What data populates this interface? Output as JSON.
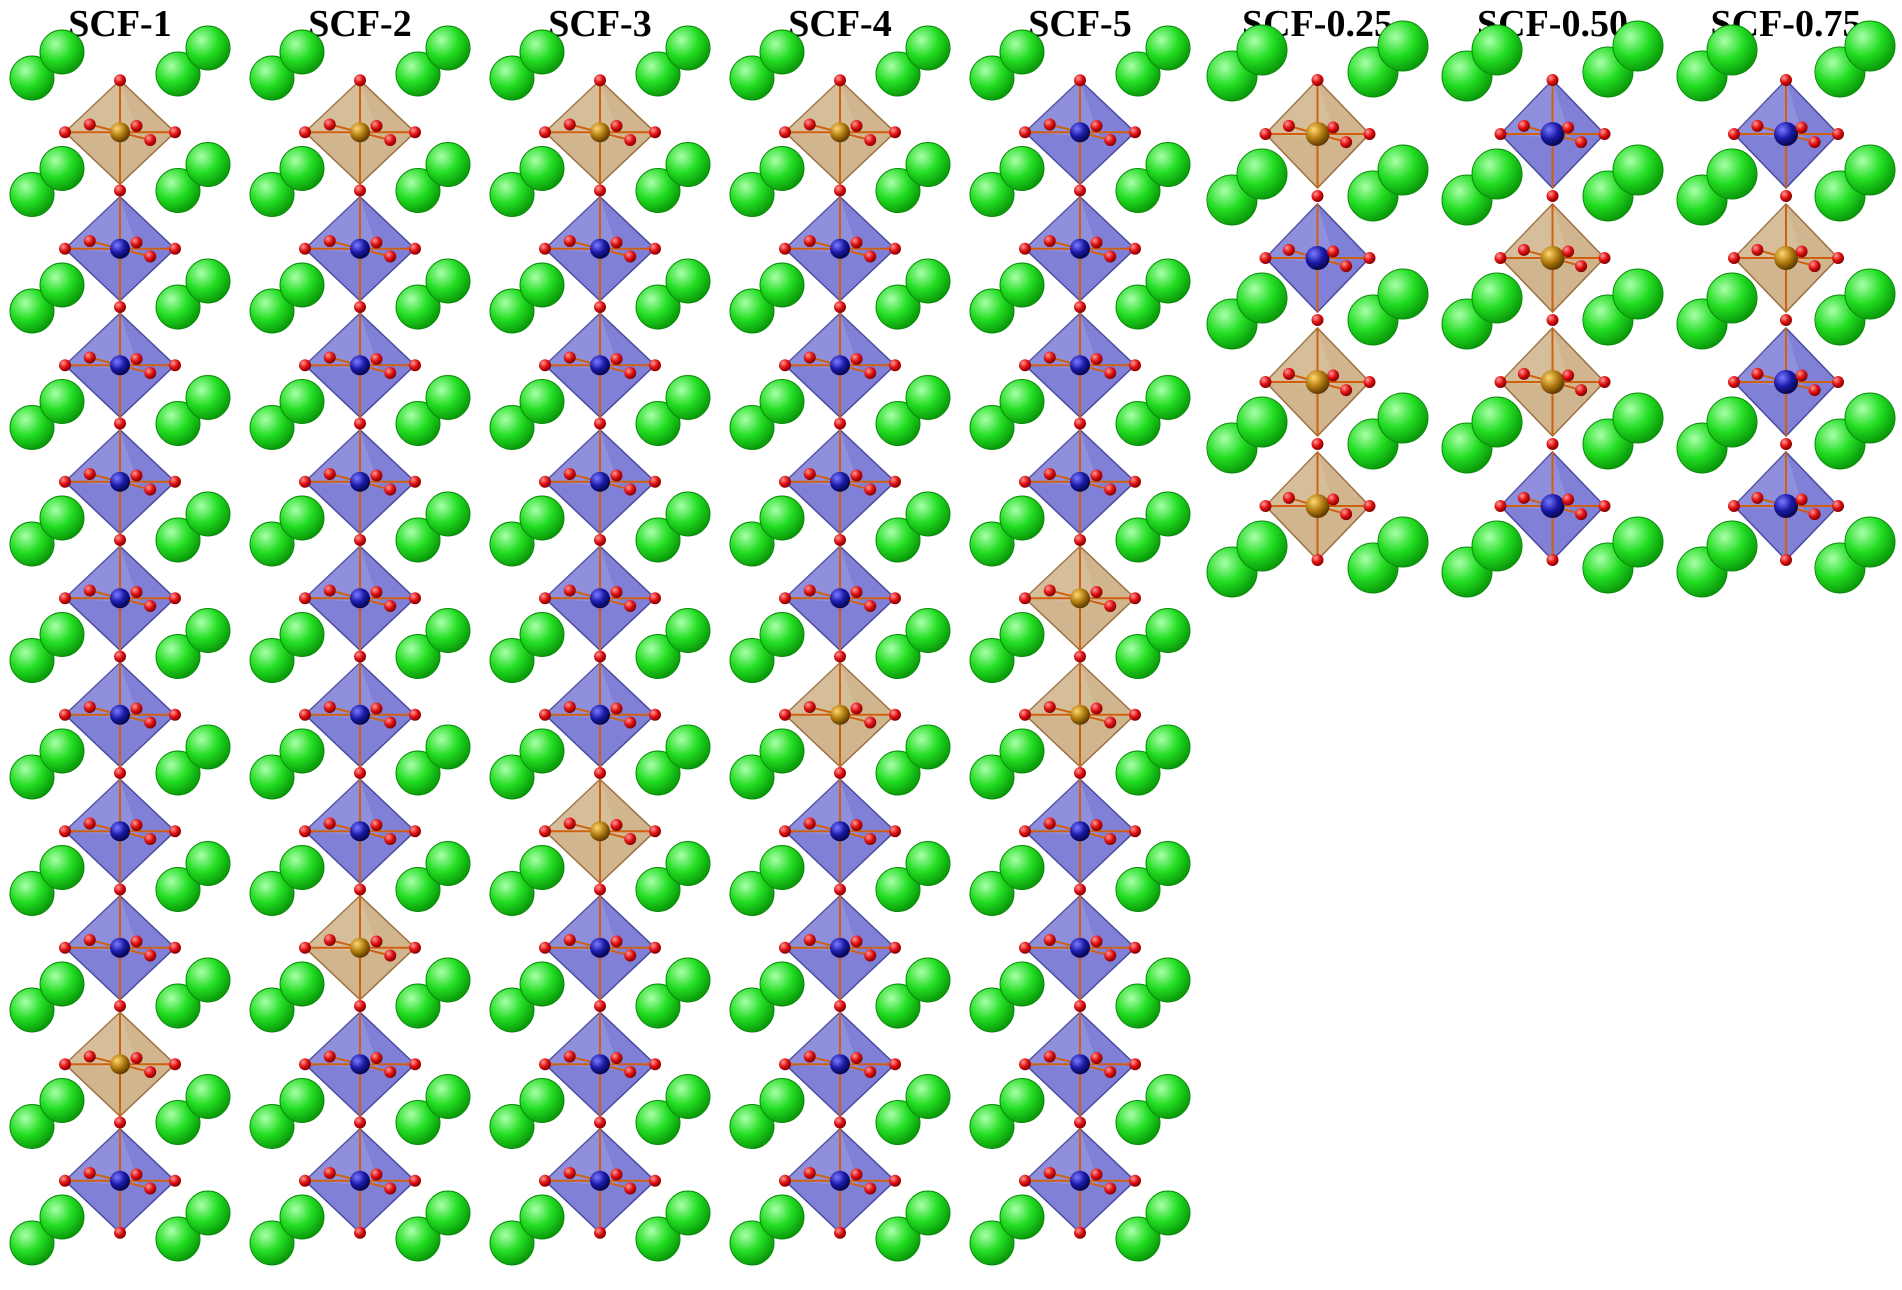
{
  "structures": [
    {
      "label": "SCF-1",
      "sequence": [
        "Fe",
        "Co",
        "Co",
        "Co",
        "Co",
        "Co",
        "Co",
        "Co",
        "Fe",
        "Co"
      ]
    },
    {
      "label": "SCF-2",
      "sequence": [
        "Fe",
        "Co",
        "Co",
        "Co",
        "Co",
        "Co",
        "Co",
        "Fe",
        "Co",
        "Co"
      ]
    },
    {
      "label": "SCF-3",
      "sequence": [
        "Fe",
        "Co",
        "Co",
        "Co",
        "Co",
        "Co",
        "Fe",
        "Co",
        "Co",
        "Co"
      ]
    },
    {
      "label": "SCF-4",
      "sequence": [
        "Fe",
        "Co",
        "Co",
        "Co",
        "Co",
        "Fe",
        "Co",
        "Co",
        "Co",
        "Co"
      ]
    },
    {
      "label": "SCF-5",
      "sequence": [
        "Co",
        "Co",
        "Co",
        "Co",
        "Fe",
        "Fe",
        "Co",
        "Co",
        "Co",
        "Co"
      ]
    },
    {
      "label": "SCF-0.25",
      "sequence": [
        "Fe",
        "Co",
        "Fe",
        "Fe"
      ]
    },
    {
      "label": "SCF-0.50",
      "sequence": [
        "Co",
        "Fe",
        "Fe",
        "Co"
      ]
    },
    {
      "label": "SCF-0.75",
      "sequence": [
        "Co",
        "Fe",
        "Co",
        "Co"
      ]
    }
  ],
  "colors": {
    "a_site_atom": "#22dd22",
    "oxygen_atom": "#e01010",
    "co_octahedron": "#6a6ad0",
    "co_center": "#1a1aa8",
    "fe_octahedron": "#c9a87a",
    "fe_center": "#b07a10",
    "bond": "#d06010"
  }
}
